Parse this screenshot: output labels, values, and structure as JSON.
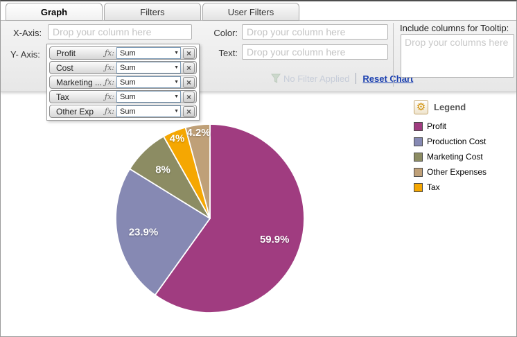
{
  "tabs": [
    {
      "label": "Graph",
      "active": true
    },
    {
      "label": "Filters",
      "active": false
    },
    {
      "label": "User Filters",
      "active": false
    }
  ],
  "toolbar": {
    "x_axis_label": "X-Axis:",
    "y_axis_label": "Y- Axis:",
    "color_label": "Color:",
    "text_label": "Text:",
    "column_placeholder": "Drop your column here",
    "fx_label": "ƒx:",
    "y_axis_items": [
      {
        "name": "Profit",
        "fn": "Sum"
      },
      {
        "name": "Cost",
        "fn": "Sum"
      },
      {
        "name": "Marketing ...",
        "fn": "Sum"
      },
      {
        "name": "Tax",
        "fn": "Sum"
      },
      {
        "name": "Other Exp",
        "fn": "Sum"
      }
    ],
    "filter_status": "No Filter Applied",
    "reset_chart": "Reset Chart",
    "tooltip_label": "Include columns for Tooltip:",
    "tooltip_placeholder": "Drop your columns here"
  },
  "icons": {
    "dropdown_arrow": "▼",
    "remove": "×",
    "gear": "⚙"
  },
  "legend": {
    "title": "Legend",
    "items": [
      {
        "label": "Profit",
        "color": "#A03C80"
      },
      {
        "label": "Production Cost",
        "color": "#8689B3"
      },
      {
        "label": "Marketing Cost",
        "color": "#8C8C63"
      },
      {
        "label": "Other Expenses",
        "color": "#BFA078"
      },
      {
        "label": "Tax",
        "color": "#F5A702"
      }
    ]
  },
  "chart_data": {
    "type": "pie",
    "start_angle_deg": 0,
    "direction": "clockwise",
    "legend_position": "right",
    "slices": [
      {
        "label": "Profit",
        "pct": 59.9,
        "display": "59.9%",
        "color": "#A03C80"
      },
      {
        "label": "Production Cost",
        "pct": 23.9,
        "display": "23.9%",
        "color": "#8689B3"
      },
      {
        "label": "Marketing Cost",
        "pct": 8,
        "display": "8%",
        "color": "#8C8C63"
      },
      {
        "label": "Tax",
        "pct": 4,
        "display": "4%",
        "color": "#F5A702"
      },
      {
        "label": "Other Expenses",
        "pct": 4.2,
        "display": "4.2%",
        "color": "#BFA078"
      }
    ]
  }
}
